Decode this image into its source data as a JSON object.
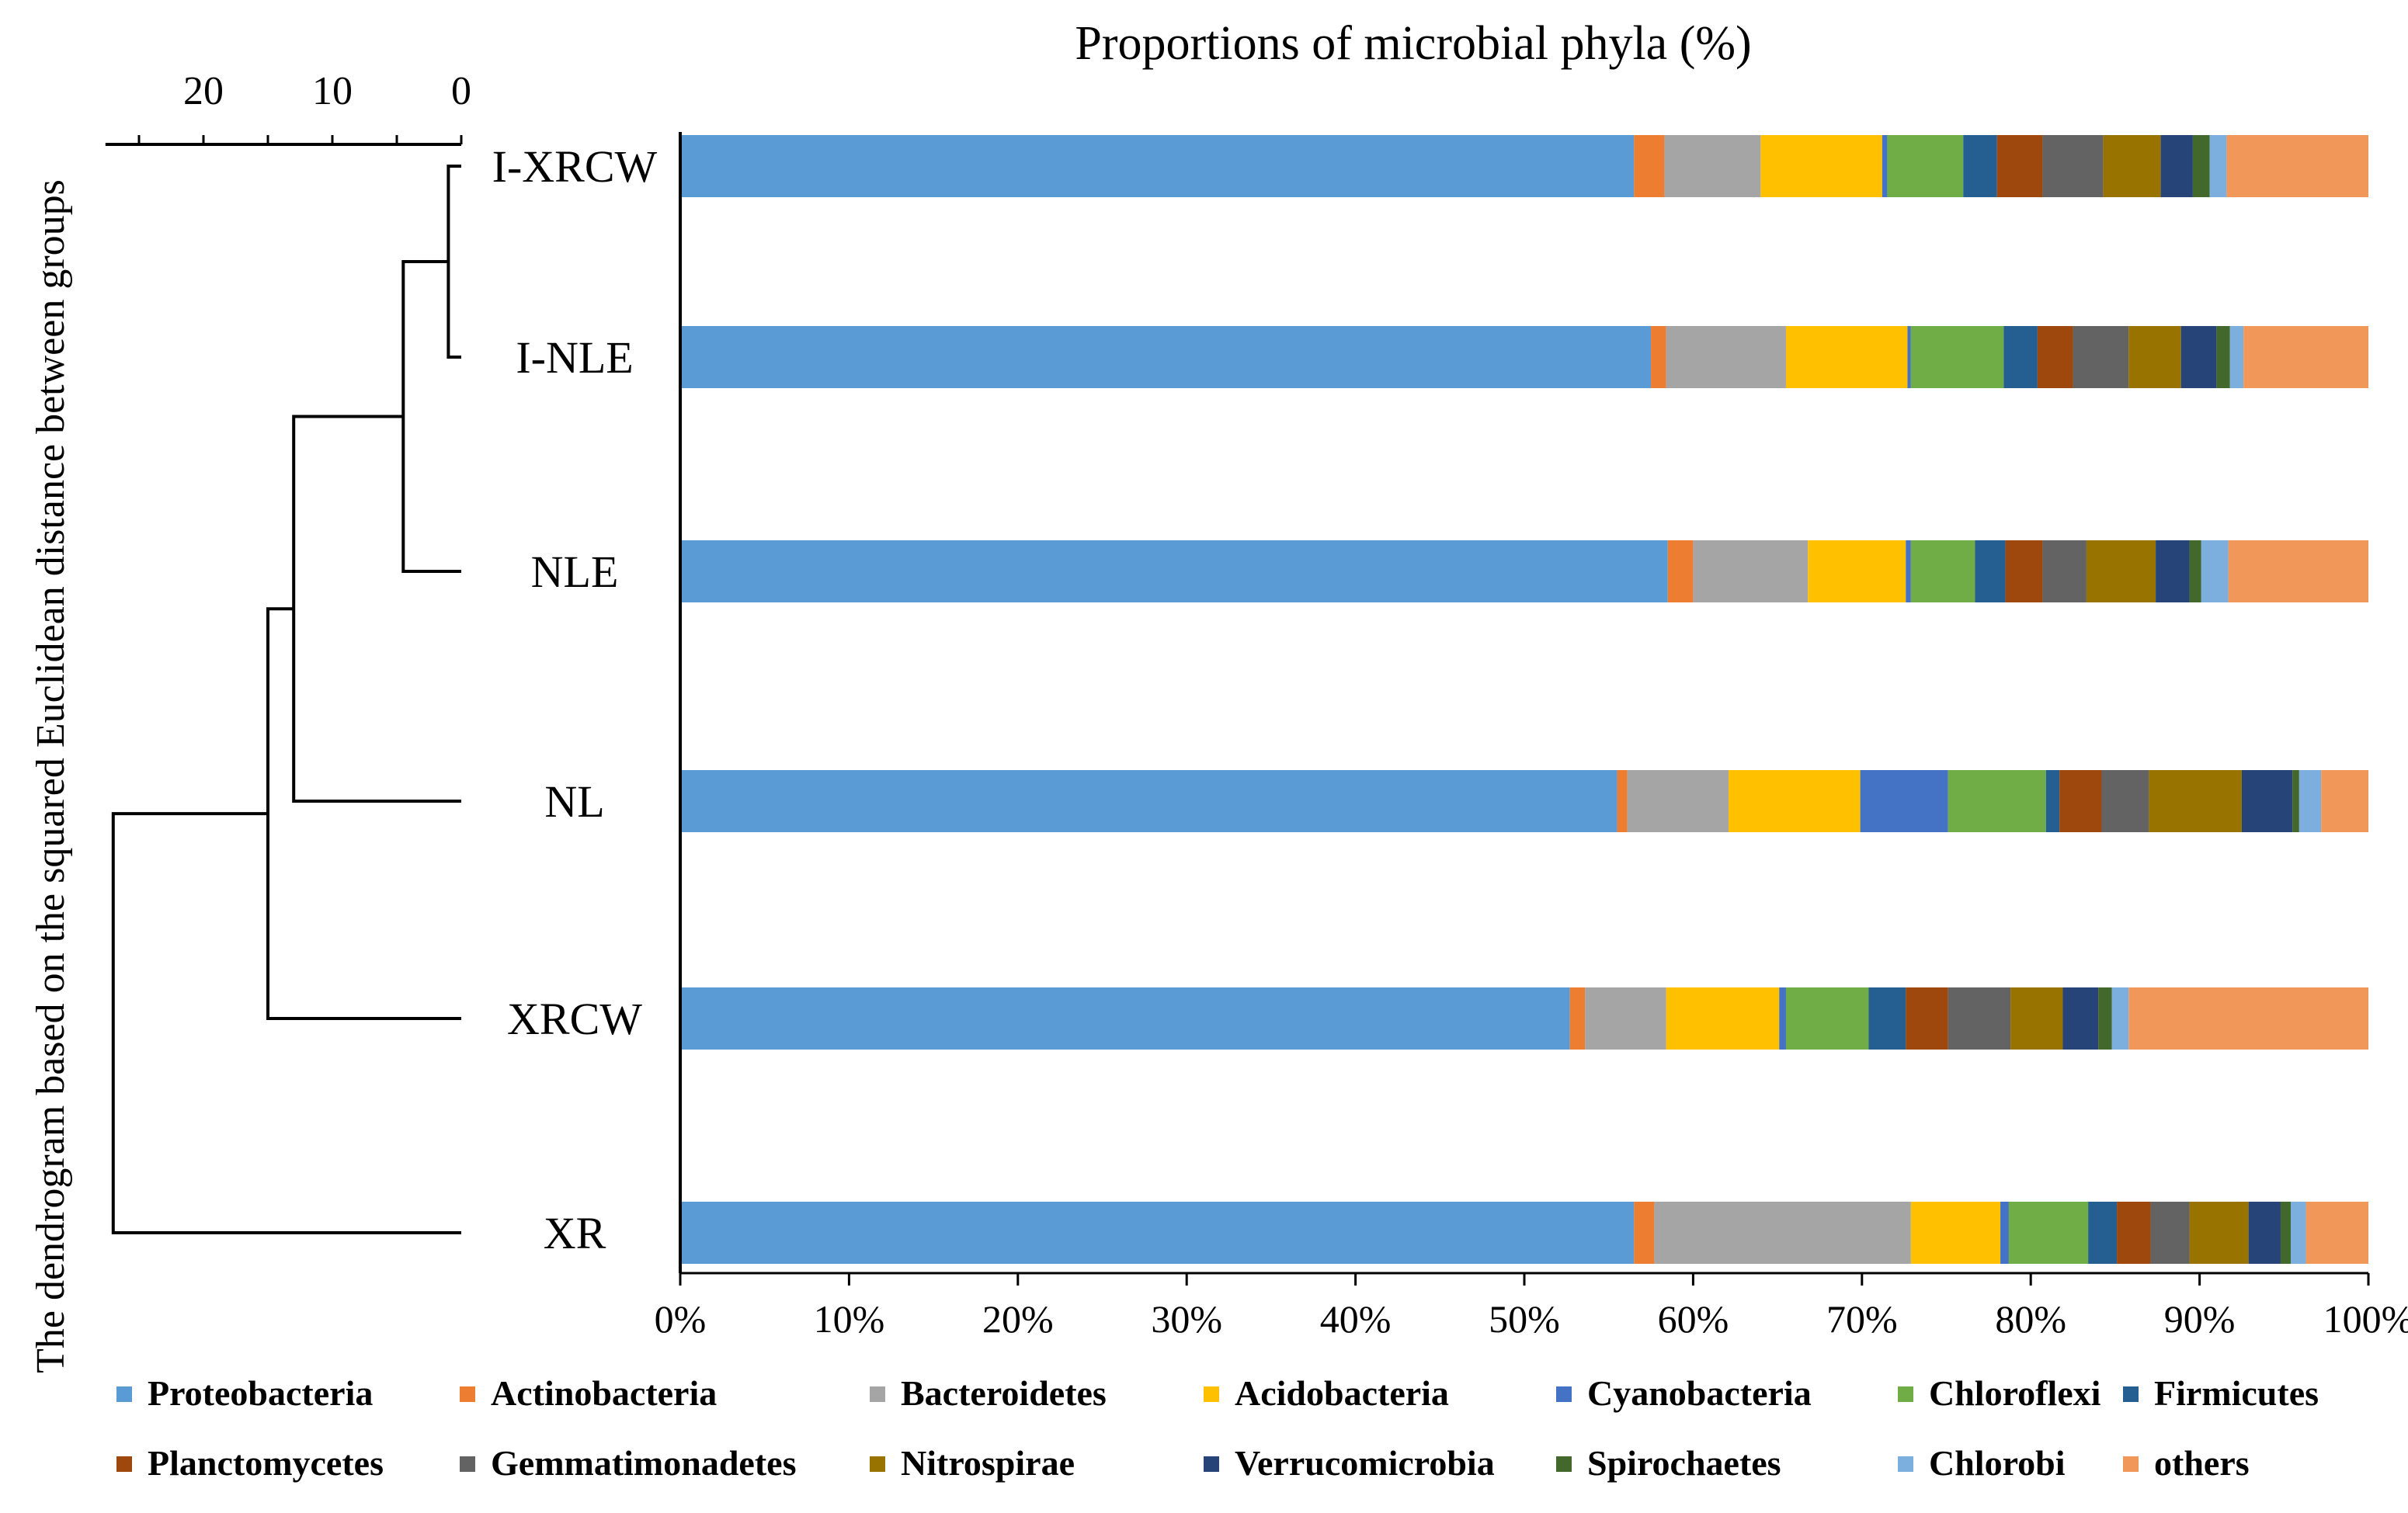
{
  "chart_data": {
    "type": "bar",
    "orientation": "horizontal",
    "stacked": true,
    "normalized_percent": true,
    "title": "Proportions of microbial phyla (%)",
    "xlabel": "",
    "ylabel": "The dendrogram based on the squared Euclidean distance between groups",
    "xlim": [
      0,
      100
    ],
    "x_ticks": [
      "0%",
      "10%",
      "20%",
      "30%",
      "40%",
      "50%",
      "60%",
      "70%",
      "80%",
      "90%",
      "100%"
    ],
    "categories": [
      "I-XRCW",
      "I-NLE",
      "NLE",
      "NL",
      "XRCW",
      "XR"
    ],
    "series": [
      {
        "name": "Proteobacteria",
        "color": "#5B9BD5",
        "values": [
          56.5,
          57.5,
          58.5,
          55.5,
          52.7,
          56.5
        ]
      },
      {
        "name": "Actinobacteria",
        "color": "#ED7D31",
        "values": [
          1.8,
          0.9,
          1.5,
          0.6,
          0.9,
          1.2
        ]
      },
      {
        "name": "Bacteroidetes",
        "color": "#A5A5A5",
        "values": [
          5.7,
          7.1,
          6.8,
          6.0,
          4.8,
          15.2
        ]
      },
      {
        "name": "Acidobacteria",
        "color": "#FFC000",
        "values": [
          7.2,
          7.2,
          5.8,
          7.8,
          6.7,
          5.3
        ]
      },
      {
        "name": "Cyanobacteria",
        "color": "#4472C4",
        "values": [
          0.3,
          0.2,
          0.3,
          5.2,
          0.4,
          0.5
        ]
      },
      {
        "name": "Chloroflexi",
        "color": "#70AD47",
        "values": [
          4.5,
          5.5,
          3.8,
          5.8,
          4.9,
          4.7
        ]
      },
      {
        "name": "Firmicutes",
        "color": "#255E91",
        "values": [
          2.0,
          2.0,
          1.8,
          0.8,
          2.2,
          1.7
        ]
      },
      {
        "name": "Planctomycetes",
        "color": "#9E480E",
        "values": [
          2.7,
          2.1,
          2.2,
          2.5,
          2.5,
          2.0
        ]
      },
      {
        "name": "Gemmatimonadetes",
        "color": "#636363",
        "values": [
          3.6,
          3.3,
          2.6,
          2.8,
          3.7,
          2.3
        ]
      },
      {
        "name": "Nitrospirae",
        "color": "#997300",
        "values": [
          3.4,
          3.1,
          4.1,
          5.5,
          3.1,
          3.5
        ]
      },
      {
        "name": "Verrucomicrobia",
        "color": "#264478",
        "values": [
          1.9,
          2.1,
          2.0,
          3.0,
          2.1,
          1.9
        ]
      },
      {
        "name": "Spirochaetes",
        "color": "#43682B",
        "values": [
          1.0,
          0.8,
          0.7,
          0.4,
          0.8,
          0.6
        ]
      },
      {
        "name": "Chlorobi",
        "color": "#7CAFDD",
        "values": [
          1.0,
          0.8,
          1.6,
          1.3,
          1.0,
          0.9
        ]
      },
      {
        "name": "others",
        "color": "#F1975A",
        "values": [
          8.4,
          7.4,
          8.3,
          2.8,
          14.2,
          3.7
        ]
      }
    ],
    "dendrogram": {
      "axis_ticks": [
        "20",
        "10",
        "0"
      ],
      "axis_tick_values": [
        20,
        10,
        0
      ],
      "axis_range": [
        27,
        0
      ],
      "leaf_order": [
        "I-XRCW",
        "I-NLE",
        "NLE",
        "NL",
        "XRCW",
        "XR"
      ],
      "merges": [
        {
          "a": "I-XRCW",
          "b": "I-NLE",
          "distance": 1.0
        },
        {
          "a": "I-XRCW + I-NLE",
          "b": "NLE",
          "distance": 4.5
        },
        {
          "a": "I-XRCW + I-NLE + NLE",
          "b": "NL",
          "distance": 13.0
        },
        {
          "a": "NL cluster",
          "b": "XRCW",
          "distance": 15.0
        },
        {
          "a": "all others",
          "b": "XR",
          "distance": 27.0
        }
      ]
    },
    "legend_position": "bottom"
  }
}
